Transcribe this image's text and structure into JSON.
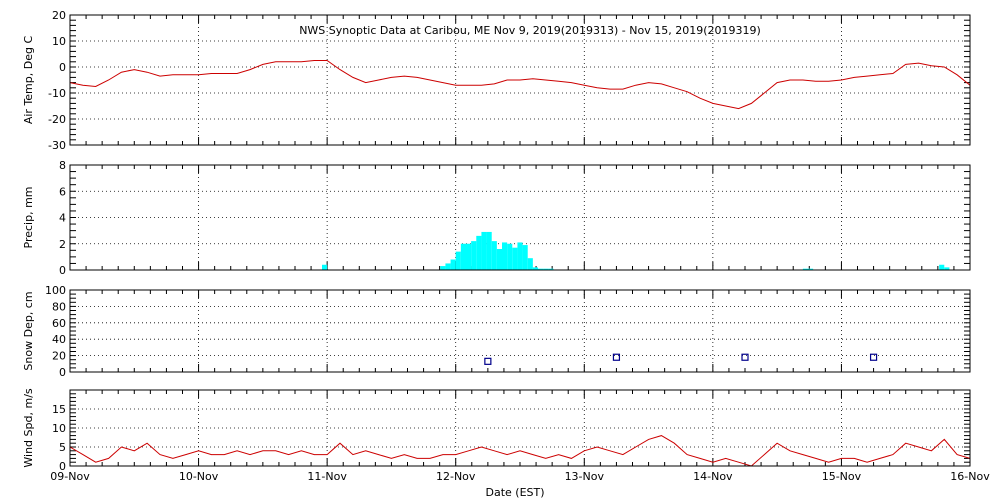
{
  "chart_data": {
    "type": "multi-panel",
    "title": "NWS Synoptic Data at Caribou, ME   Nov  9, 2019(2019313) - Nov 15, 2019(2019319)",
    "xlabel": "Date (EST)",
    "x_tick_labels": [
      "09-Nov",
      "10-Nov",
      "11-Nov",
      "12-Nov",
      "13-Nov",
      "14-Nov",
      "15-Nov",
      "16-Nov"
    ],
    "xlim": [
      0,
      7
    ],
    "grid": true,
    "panels": [
      {
        "type": "line",
        "ylabel": "Air Temp, Deg C",
        "ylim": [
          -30,
          20
        ],
        "yticks": [
          "20",
          "10",
          "0",
          "-10",
          "-20",
          "-30"
        ],
        "color": "#cc0000",
        "x": [
          0,
          0.1,
          0.2,
          0.3,
          0.4,
          0.5,
          0.6,
          0.7,
          0.8,
          0.9,
          1.0,
          1.1,
          1.2,
          1.3,
          1.4,
          1.5,
          1.6,
          1.7,
          1.8,
          1.9,
          2.0,
          2.1,
          2.2,
          2.3,
          2.4,
          2.5,
          2.6,
          2.7,
          2.8,
          2.9,
          3.0,
          3.1,
          3.2,
          3.3,
          3.4,
          3.5,
          3.6,
          3.7,
          3.8,
          3.9,
          4.0,
          4.1,
          4.2,
          4.3,
          4.4,
          4.5,
          4.6,
          4.7,
          4.8,
          4.9,
          5.0,
          5.1,
          5.2,
          5.3,
          5.4,
          5.5,
          5.6,
          5.7,
          5.8,
          5.9,
          6.0,
          6.1,
          6.2,
          6.3,
          6.4,
          6.5,
          6.6,
          6.7,
          6.8,
          6.9,
          7.0
        ],
        "values": [
          -6,
          -7,
          -7.5,
          -5,
          -2,
          -1,
          -2,
          -3.5,
          -3,
          -3,
          -3,
          -2.5,
          -2.5,
          -2.5,
          -1,
          1,
          2,
          2,
          2,
          2.5,
          2.5,
          -1,
          -4,
          -6,
          -5,
          -4,
          -3.5,
          -4,
          -5,
          -6,
          -7,
          -7,
          -7,
          -6.5,
          -5,
          -5,
          -4.5,
          -5,
          -5.5,
          -6,
          -7,
          -8,
          -8.5,
          -8.5,
          -7,
          -6,
          -6.5,
          -8,
          -9.5,
          -12,
          -14,
          -15,
          -16,
          -14,
          -10,
          -6,
          -5,
          -5,
          -5.5,
          -5.5,
          -5,
          -4,
          -3.5,
          -3,
          -2.5,
          1,
          1.5,
          0.5,
          0,
          -3,
          -7
        ]
      },
      {
        "type": "bar",
        "ylabel": "Precip, mm",
        "ylim": [
          0,
          8
        ],
        "yticks": [
          "8",
          "6",
          "4",
          "2",
          "0"
        ],
        "color": "#00ffff",
        "bin_width": 0.04,
        "x": [
          1.96,
          2.88,
          2.92,
          2.96,
          3.0,
          3.04,
          3.08,
          3.12,
          3.16,
          3.2,
          3.24,
          3.28,
          3.32,
          3.36,
          3.4,
          3.44,
          3.48,
          3.52,
          3.56,
          3.6,
          3.64,
          3.68,
          3.72,
          5.7,
          5.74,
          6.76,
          6.8
        ],
        "values": [
          0.4,
          0.3,
          0.5,
          0.8,
          1.4,
          2.0,
          2.0,
          2.2,
          2.6,
          2.9,
          2.9,
          2.2,
          1.6,
          2.1,
          2.0,
          1.7,
          2.1,
          1.9,
          0.9,
          0.2,
          0.1,
          0.1,
          0.1,
          0.1,
          0.1,
          0.4,
          0.2
        ]
      },
      {
        "type": "scatter",
        "ylabel": "Snow Dep, cm",
        "ylim": [
          0,
          100
        ],
        "yticks": [
          "100",
          "80",
          "60",
          "40",
          "20",
          "0"
        ],
        "color": "#00008b",
        "x": [
          3.25,
          4.25,
          5.25,
          6.25
        ],
        "values": [
          13,
          18,
          18,
          18
        ]
      },
      {
        "type": "line",
        "ylabel": "Wind Spd, m/s",
        "ylim": [
          0,
          20
        ],
        "yticks": [
          "15",
          "10",
          "5",
          "0"
        ],
        "color": "#cc0000",
        "x": [
          0,
          0.1,
          0.2,
          0.3,
          0.4,
          0.5,
          0.6,
          0.7,
          0.8,
          0.9,
          1.0,
          1.1,
          1.2,
          1.3,
          1.4,
          1.5,
          1.6,
          1.7,
          1.8,
          1.9,
          2.0,
          2.1,
          2.2,
          2.3,
          2.4,
          2.5,
          2.6,
          2.7,
          2.8,
          2.9,
          3.0,
          3.1,
          3.2,
          3.3,
          3.4,
          3.5,
          3.6,
          3.7,
          3.8,
          3.9,
          4.0,
          4.1,
          4.2,
          4.3,
          4.4,
          4.5,
          4.6,
          4.7,
          4.8,
          4.9,
          5.0,
          5.1,
          5.2,
          5.3,
          5.4,
          5.5,
          5.6,
          5.7,
          5.8,
          5.9,
          6.0,
          6.1,
          6.2,
          6.3,
          6.4,
          6.5,
          6.6,
          6.7,
          6.8,
          6.9,
          7.0
        ],
        "values": [
          5,
          3,
          1,
          2,
          5,
          4,
          6,
          3,
          2,
          3,
          4,
          3,
          3,
          4,
          3,
          4,
          4,
          3,
          4,
          3,
          3,
          6,
          3,
          4,
          3,
          2,
          3,
          2,
          2,
          3,
          3,
          4,
          5,
          4,
          3,
          4,
          3,
          2,
          3,
          2,
          4,
          5,
          4,
          3,
          5,
          7,
          8,
          6,
          3,
          2,
          1,
          2,
          1,
          0,
          3,
          6,
          4,
          3,
          2,
          1,
          2,
          2,
          1,
          2,
          3,
          6,
          5,
          4,
          7,
          3,
          2
        ]
      }
    ]
  }
}
